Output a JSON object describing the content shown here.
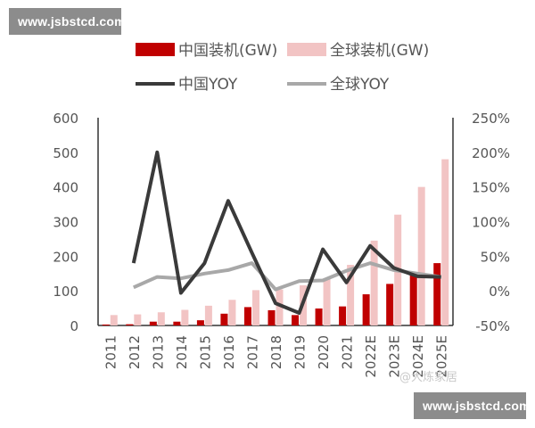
{
  "watermark": {
    "top": "www.jsbstcd.com",
    "bottom": "www.jsbstcd.com"
  },
  "chart_data": {
    "type": "bar",
    "categories": [
      "2011",
      "2012",
      "2013",
      "2014",
      "2015",
      "2016",
      "2017",
      "2018",
      "2019",
      "2020",
      "2021",
      "2022E",
      "2023E",
      "2024E",
      "2025E"
    ],
    "series": [
      {
        "name": "中国装机(GW)",
        "kind": "bar",
        "axis": "left",
        "color": "#c00000",
        "values": [
          2.7,
          3.5,
          11,
          11,
          15,
          34,
          53,
          44,
          30,
          49,
          55,
          90,
          120,
          145,
          180
        ]
      },
      {
        "name": "全球装机(GW)",
        "kind": "bar",
        "axis": "left",
        "color": "#f2c4c4",
        "values": [
          30,
          32,
          38,
          45,
          57,
          74,
          102,
          104,
          116,
          136,
          175,
          245,
          320,
          400,
          480
        ]
      },
      {
        "name": "中国YOY",
        "kind": "line",
        "axis": "right",
        "color": "#3a3a3a",
        "values": [
          null,
          40,
          200,
          -3,
          40,
          130,
          55,
          -18,
          -32,
          60,
          12,
          65,
          33,
          21,
          20
        ]
      },
      {
        "name": "全球YOY",
        "kind": "line",
        "axis": "right",
        "color": "#a8a8a8",
        "values": [
          null,
          5,
          20,
          18,
          25,
          30,
          40,
          2,
          14,
          15,
          29,
          40,
          30,
          25,
          20
        ]
      }
    ],
    "y_left": {
      "min": 0,
      "max": 600,
      "ticks": [
        0,
        100,
        200,
        300,
        400,
        500,
        600
      ]
    },
    "y_right": {
      "min": -50,
      "max": 250,
      "ticks": [
        "-50%",
        "0%",
        "50%",
        "100%",
        "150%",
        "200%",
        "250%"
      ]
    },
    "legend_position": "top",
    "source_text": "@大炼家居"
  }
}
